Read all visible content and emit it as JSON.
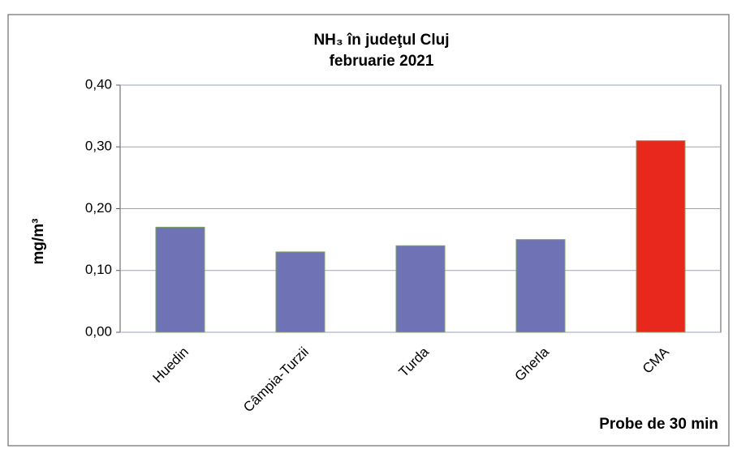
{
  "chart_data": {
    "type": "bar",
    "title": "NH₃ în judeţul Cluj",
    "subtitle": "februarie 2021",
    "y_label": "mg/m³",
    "x_label": "Probe de 30 min",
    "categories": [
      "Huedin",
      "Câmpia-Turzii",
      "Turda",
      "Gherla",
      "CMA"
    ],
    "values": [
      0.17,
      0.13,
      0.14,
      0.15,
      0.31
    ],
    "colors": [
      "#6f73b5",
      "#6f73b5",
      "#6f73b5",
      "#6f73b5",
      "#e8281c"
    ],
    "ylim": [
      0,
      0.4
    ],
    "yticks": [
      {
        "value": 0,
        "label": "0,00"
      },
      {
        "value": 0.1,
        "label": "0,10"
      },
      {
        "value": 0.2,
        "label": "0,20"
      },
      {
        "value": 0.3,
        "label": "0,30"
      },
      {
        "value": 0.4,
        "label": "0,40"
      }
    ],
    "grid": true
  }
}
